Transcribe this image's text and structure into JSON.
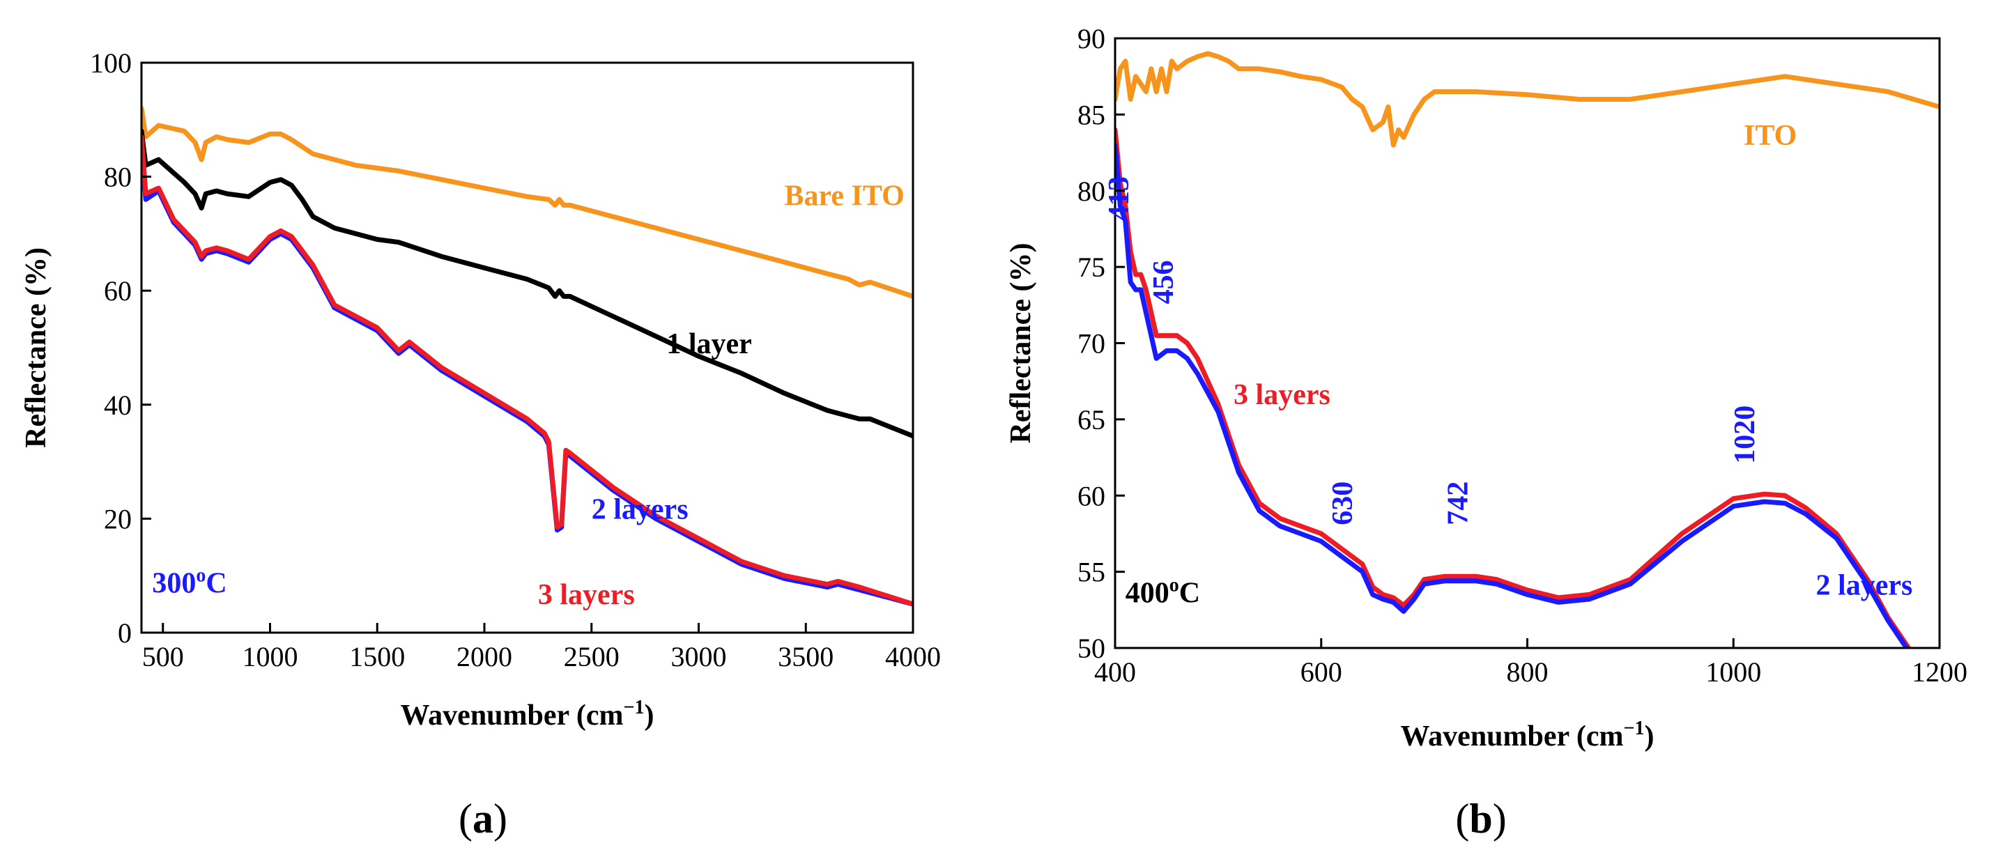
{
  "colors": {
    "orange": "#f7941d",
    "black": "#000000",
    "blue": "#1a1aff",
    "red": "#ee1c25"
  },
  "chart_data": [
    {
      "panel": "(a)",
      "panel_letter": "a",
      "type": "line",
      "xlabel": "Wavenumber (cm",
      "xlabel_sup": "−1",
      "xlabel_close": ")",
      "ylabel": "Reflectance (%)",
      "xlim": [
        400,
        4000
      ],
      "ylim": [
        0,
        100
      ],
      "xticks": [
        500,
        1000,
        1500,
        2000,
        2500,
        3000,
        3500,
        4000
      ],
      "yticks": [
        0,
        20,
        40,
        60,
        80,
        100
      ],
      "series": [
        {
          "name": "Bare ITO",
          "color": "#f7941d",
          "x": [
            400,
            420,
            480,
            600,
            650,
            680,
            700,
            750,
            800,
            900,
            1000,
            1050,
            1100,
            1200,
            1400,
            1600,
            1800,
            2000,
            2200,
            2300,
            2330,
            2350,
            2370,
            2400,
            2600,
            2800,
            3000,
            3200,
            3400,
            3600,
            3650,
            3700,
            3750,
            3800,
            4000
          ],
          "y": [
            92,
            87,
            89,
            88,
            86,
            83,
            86,
            87,
            86.5,
            86,
            87.5,
            87.5,
            86.5,
            84,
            82,
            81,
            79.5,
            78,
            76.5,
            76,
            75,
            76,
            75,
            75,
            73,
            71,
            69,
            67,
            65,
            63,
            62.5,
            62,
            61,
            61.5,
            59
          ]
        },
        {
          "name": "1 layer",
          "color": "#000000",
          "x": [
            400,
            420,
            480,
            600,
            650,
            680,
            700,
            750,
            800,
            900,
            1000,
            1050,
            1100,
            1150,
            1200,
            1300,
            1500,
            1600,
            1800,
            2000,
            2200,
            2300,
            2330,
            2350,
            2370,
            2400,
            2600,
            2800,
            3000,
            3200,
            3400,
            3600,
            3650,
            3700,
            3750,
            3800,
            4000
          ],
          "y": [
            88,
            82,
            83,
            79,
            77,
            74.5,
            77,
            77.5,
            77,
            76.5,
            79,
            79.5,
            78.5,
            76,
            73,
            71,
            69,
            68.5,
            66,
            64,
            62,
            60.5,
            59,
            60,
            59,
            59,
            55.5,
            52,
            48.5,
            45.5,
            42,
            39,
            38.5,
            38,
            37.5,
            37.5,
            34.5
          ]
        },
        {
          "name": "2 layers",
          "color": "#1a1aff",
          "x": [
            400,
            420,
            480,
            550,
            600,
            650,
            680,
            700,
            750,
            800,
            900,
            1000,
            1050,
            1100,
            1200,
            1300,
            1500,
            1550,
            1600,
            1650,
            1800,
            2000,
            2200,
            2280,
            2300,
            2340,
            2360,
            2380,
            2400,
            2600,
            2800,
            3000,
            3200,
            3400,
            3600,
            3650,
            3700,
            3750,
            4000
          ],
          "y": [
            86,
            76,
            77.5,
            72,
            70,
            68,
            65.5,
            66.5,
            67,
            66.5,
            65,
            69,
            70,
            69,
            64,
            57,
            53,
            51,
            49,
            50.5,
            46,
            41.5,
            37,
            34.5,
            33,
            18,
            18.5,
            31.5,
            31,
            25,
            20,
            16,
            12,
            9.5,
            8,
            8.5,
            8,
            7.5,
            5
          ]
        },
        {
          "name": "3 layers",
          "color": "#ee1c25",
          "x": [
            400,
            420,
            480,
            550,
            600,
            650,
            680,
            700,
            750,
            800,
            900,
            1000,
            1050,
            1100,
            1200,
            1300,
            1500,
            1550,
            1600,
            1650,
            1800,
            2000,
            2200,
            2280,
            2300,
            2340,
            2360,
            2380,
            2400,
            2600,
            2800,
            3000,
            3200,
            3400,
            3600,
            3650,
            3700,
            3750,
            4000
          ],
          "y": [
            87,
            77,
            78,
            72.5,
            70.5,
            68.5,
            66,
            67,
            67.5,
            67,
            65.5,
            69.5,
            70.5,
            69.5,
            64.5,
            57.5,
            53.5,
            51.5,
            49.5,
            51,
            46.5,
            42,
            37.5,
            35,
            33.5,
            18.5,
            19,
            32,
            31.5,
            25.5,
            20.5,
            16.5,
            12.5,
            10,
            8.5,
            9,
            8.5,
            8,
            5
          ]
        }
      ],
      "annotations": [
        {
          "text": "Bare ITO",
          "color": "#f7941d",
          "x": 3400,
          "y": 75
        },
        {
          "text": "1 layer",
          "color": "#000000",
          "x": 2850,
          "y": 49
        },
        {
          "text": "2 layers",
          "color": "#1a1aff",
          "x": 2500,
          "y": 20
        },
        {
          "text": "3 layers",
          "color": "#ee1c25",
          "x": 2250,
          "y": 5
        },
        {
          "text": "300",
          "sup": "o",
          "tail": "C",
          "color": "#1a1aff",
          "x": 450,
          "y": 7
        }
      ]
    },
    {
      "panel": "(b)",
      "panel_letter": "b",
      "type": "line",
      "xlabel": "Wavenumber (cm",
      "xlabel_sup": "−1",
      "xlabel_close": ")",
      "ylabel": "Reflectance (%)",
      "xlim": [
        400,
        1200
      ],
      "ylim": [
        50,
        90
      ],
      "xticks": [
        400,
        600,
        800,
        1000,
        1200
      ],
      "yticks": [
        50,
        55,
        60,
        65,
        70,
        75,
        80,
        85,
        90
      ],
      "series": [
        {
          "name": "ITO",
          "color": "#f7941d",
          "x": [
            400,
            405,
            410,
            415,
            420,
            425,
            430,
            435,
            440,
            445,
            450,
            455,
            460,
            470,
            480,
            490,
            500,
            510,
            520,
            540,
            560,
            580,
            600,
            620,
            630,
            640,
            650,
            660,
            665,
            670,
            675,
            680,
            690,
            700,
            710,
            720,
            750,
            800,
            850,
            900,
            950,
            1000,
            1050,
            1100,
            1150,
            1200
          ],
          "y": [
            86,
            88,
            88.5,
            86,
            87.5,
            87,
            86.5,
            88,
            86.5,
            88,
            86.5,
            88.5,
            88,
            88.5,
            88.8,
            89,
            88.8,
            88.5,
            88,
            88,
            87.8,
            87.5,
            87.3,
            86.8,
            86,
            85.5,
            84,
            84.5,
            85.5,
            83,
            84,
            83.5,
            85,
            86,
            86.5,
            86.5,
            86.5,
            86.3,
            86,
            86,
            86.5,
            87,
            87.5,
            87,
            86.5,
            85.5
          ]
        },
        {
          "name": "3 layers",
          "color": "#ee1c25",
          "x": [
            400,
            405,
            410,
            415,
            420,
            425,
            430,
            435,
            440,
            450,
            460,
            470,
            480,
            500,
            520,
            540,
            560,
            580,
            600,
            620,
            640,
            650,
            660,
            670,
            680,
            690,
            700,
            720,
            750,
            770,
            800,
            830,
            860,
            900,
            950,
            1000,
            1030,
            1050,
            1070,
            1100,
            1130,
            1150,
            1170
          ],
          "y": [
            84,
            80.5,
            79,
            76,
            74.5,
            74.5,
            73.5,
            72,
            70.5,
            70.5,
            70.5,
            70,
            69,
            66,
            62,
            59.5,
            58.5,
            58,
            57.5,
            56.5,
            55.5,
            54,
            53.5,
            53.3,
            52.8,
            53.5,
            54.5,
            54.7,
            54.7,
            54.5,
            53.8,
            53.3,
            53.5,
            54.5,
            57.5,
            59.8,
            60.1,
            60,
            59.2,
            57.5,
            54.5,
            52,
            50
          ]
        },
        {
          "name": "2 layers",
          "color": "#1a1aff",
          "x": [
            400,
            405,
            410,
            415,
            420,
            425,
            430,
            435,
            440,
            450,
            460,
            470,
            480,
            500,
            520,
            540,
            560,
            580,
            600,
            620,
            640,
            650,
            660,
            670,
            680,
            690,
            700,
            720,
            750,
            770,
            800,
            830,
            860,
            900,
            950,
            1000,
            1030,
            1050,
            1070,
            1100,
            1130,
            1150,
            1170
          ],
          "y": [
            83,
            79,
            78,
            74,
            73.5,
            73.5,
            72,
            70.5,
            69,
            69.5,
            69.5,
            69,
            68,
            65.5,
            61.5,
            59,
            58,
            57.5,
            57,
            56,
            55,
            53.5,
            53.2,
            53,
            52.4,
            53.2,
            54.2,
            54.4,
            54.4,
            54.2,
            53.5,
            53,
            53.2,
            54.2,
            57,
            59.3,
            59.6,
            59.5,
            58.8,
            57.2,
            54.2,
            51.8,
            49.8
          ]
        }
      ],
      "annotations": [
        {
          "text": "ITO",
          "color": "#f7941d",
          "x": 1010,
          "y": 83
        },
        {
          "text": "3 layers",
          "color": "#ee1c25",
          "x": 515,
          "y": 66
        },
        {
          "text": "2 layers",
          "color": "#1a1aff",
          "x": 1080,
          "y": 53.5
        },
        {
          "text": "400",
          "sup": "o",
          "tail": "C",
          "color": "#000000",
          "x": 410,
          "y": 53
        },
        {
          "text": "413",
          "color": "#1a1aff",
          "x": 413,
          "y": 79.5,
          "rotate": true
        },
        {
          "text": "456",
          "color": "#1a1aff",
          "x": 456,
          "y": 74,
          "rotate": true
        },
        {
          "text": "630",
          "color": "#1a1aff",
          "x": 630,
          "y": 59.5,
          "rotate": true
        },
        {
          "text": "742",
          "color": "#1a1aff",
          "x": 742,
          "y": 59.5,
          "rotate": true
        },
        {
          "text": "1020",
          "color": "#1a1aff",
          "x": 1020,
          "y": 64,
          "rotate": true
        }
      ]
    }
  ]
}
